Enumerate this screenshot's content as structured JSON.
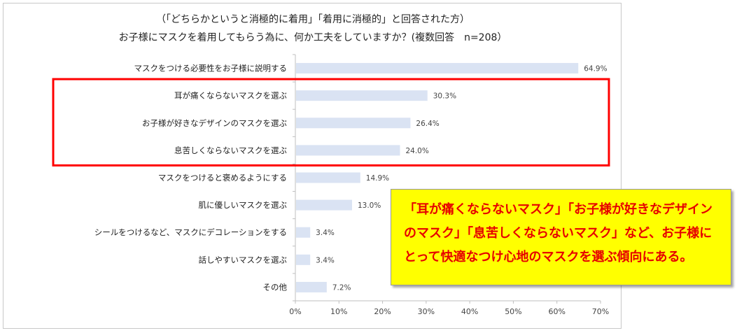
{
  "colors": {
    "bar": "#dae3f3",
    "axis": "#bfbfbf",
    "highlight": "#ff0000",
    "callout_bg": "#ffff00",
    "callout_text": "#e60000"
  },
  "chart_data": {
    "type": "bar",
    "orientation": "horizontal",
    "title_line1": "（「どちらかというと消極的に着用」「着用に消極的」と回答された方）",
    "title_line2": "お子様にマスクを着用してもらう為に、何か工夫をしていますか？(複数回答　n=208）",
    "categories": [
      "マスクをつける必要性をお子様に説明する",
      "耳が痛くならないマスクを選ぶ",
      "お子様が好きなデザインのマスクを選ぶ",
      "息苦しくならないマスクを選ぶ",
      "マスクをつけると褒めるようにする",
      "肌に優しいマスクを選ぶ",
      "シールをつけるなど、マスクにデコレーションをする",
      "話しやすいマスクを選ぶ",
      "その他"
    ],
    "values": [
      64.9,
      30.3,
      26.4,
      24.0,
      14.9,
      13.0,
      3.4,
      3.4,
      7.2
    ],
    "value_labels": [
      "64.9%",
      "30.3%",
      "26.4%",
      "24.0%",
      "14.9%",
      "13.0%",
      "3.4%",
      "3.4%",
      "7.2%"
    ],
    "xlim": [
      0,
      70
    ],
    "x_ticks": [
      "0%",
      "10%",
      "20%",
      "30%",
      "40%",
      "50%",
      "60%",
      "70%"
    ],
    "highlighted_categories": [
      1,
      2,
      3
    ]
  },
  "callout": {
    "text": "「耳が痛くならないマスク」「お子様が好きなデザインのマスク」「息苦しくならないマスク」など、お子様にとって快適なつけ心地のマスクを選ぶ傾向にある。"
  }
}
